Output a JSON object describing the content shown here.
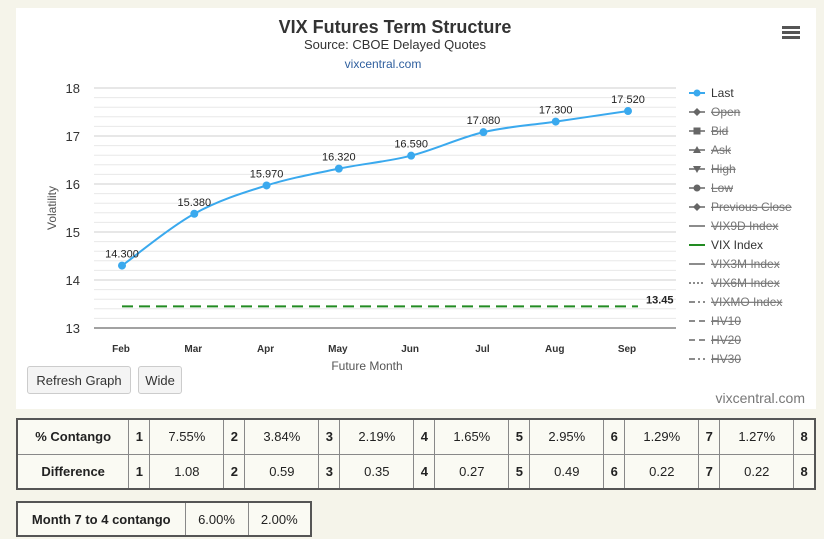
{
  "header": {
    "title": "VIX Futures Term Structure",
    "subtitle": "Source: CBOE Delayed Quotes",
    "link": "vixcentral.com"
  },
  "credit": "vixcentral.com",
  "buttons": {
    "refresh": "Refresh Graph",
    "wide": "Wide"
  },
  "menu_icon": "hamburger-menu-icon",
  "colors": {
    "last": "#3aa9ee",
    "vix": "#228b22",
    "muted": "#666666"
  },
  "chart_data": {
    "type": "line",
    "title": "VIX Futures Term Structure",
    "subtitle": "Source: CBOE Delayed Quotes",
    "xlabel": "Future Month",
    "ylabel": "Volatility",
    "categories": [
      "Feb",
      "Mar",
      "Apr",
      "May",
      "Jun",
      "Jul",
      "Aug",
      "Sep"
    ],
    "yticks": [
      "13",
      "14",
      "15",
      "16",
      "17",
      "18"
    ],
    "ylim": [
      13,
      18
    ],
    "grid": true,
    "legend_position": "right",
    "series": [
      {
        "name": "Last",
        "values": [
          14.3,
          15.38,
          15.97,
          16.32,
          16.59,
          17.08,
          17.3,
          17.52
        ],
        "labels": [
          "14.300",
          "15.380",
          "15.970",
          "16.320",
          "16.590",
          "17.080",
          "17.300",
          "17.520"
        ]
      },
      {
        "name": "VIX Index",
        "values": [
          13.45,
          13.45,
          13.45,
          13.45,
          13.45,
          13.45,
          13.45,
          13.45
        ],
        "label": "13.45"
      }
    ],
    "legend": [
      {
        "name": "Last",
        "symbol": "circle",
        "active": true
      },
      {
        "name": "Open",
        "symbol": "diamond",
        "active": false
      },
      {
        "name": "Bid",
        "symbol": "square",
        "active": false
      },
      {
        "name": "Ask",
        "symbol": "triangle-up",
        "active": false
      },
      {
        "name": "High",
        "symbol": "triangle-down",
        "active": false
      },
      {
        "name": "Low",
        "symbol": "circle",
        "active": false
      },
      {
        "name": "Previous Close",
        "symbol": "diamond",
        "active": false
      },
      {
        "name": "VIX9D Index",
        "symbol": "line",
        "active": false
      },
      {
        "name": "VIX Index",
        "symbol": "line",
        "active": true
      },
      {
        "name": "VIX3M Index",
        "symbol": "line",
        "active": false
      },
      {
        "name": "VIX6M Index",
        "symbol": "dotted",
        "active": false
      },
      {
        "name": "VIXMO Index",
        "symbol": "dashdot",
        "active": false
      },
      {
        "name": "HV10",
        "symbol": "dash",
        "active": false
      },
      {
        "name": "HV20",
        "symbol": "dash",
        "active": false
      },
      {
        "name": "HV30",
        "symbol": "dashdot",
        "active": false
      }
    ]
  },
  "contango": {
    "row_label": "% Contango",
    "values": [
      "7.55%",
      "3.84%",
      "2.19%",
      "1.65%",
      "2.95%",
      "1.29%",
      "1.27%"
    ],
    "last_index": "8"
  },
  "difference": {
    "row_label": "Difference",
    "values": [
      "1.08",
      "0.59",
      "0.35",
      "0.27",
      "0.49",
      "0.22",
      "0.22"
    ],
    "last_index": "8"
  },
  "indices": [
    "1",
    "2",
    "3",
    "4",
    "5",
    "6",
    "7"
  ],
  "month_contango": {
    "label": "Month 7 to 4 contango",
    "v1": "6.00%",
    "v2": "2.00%"
  }
}
